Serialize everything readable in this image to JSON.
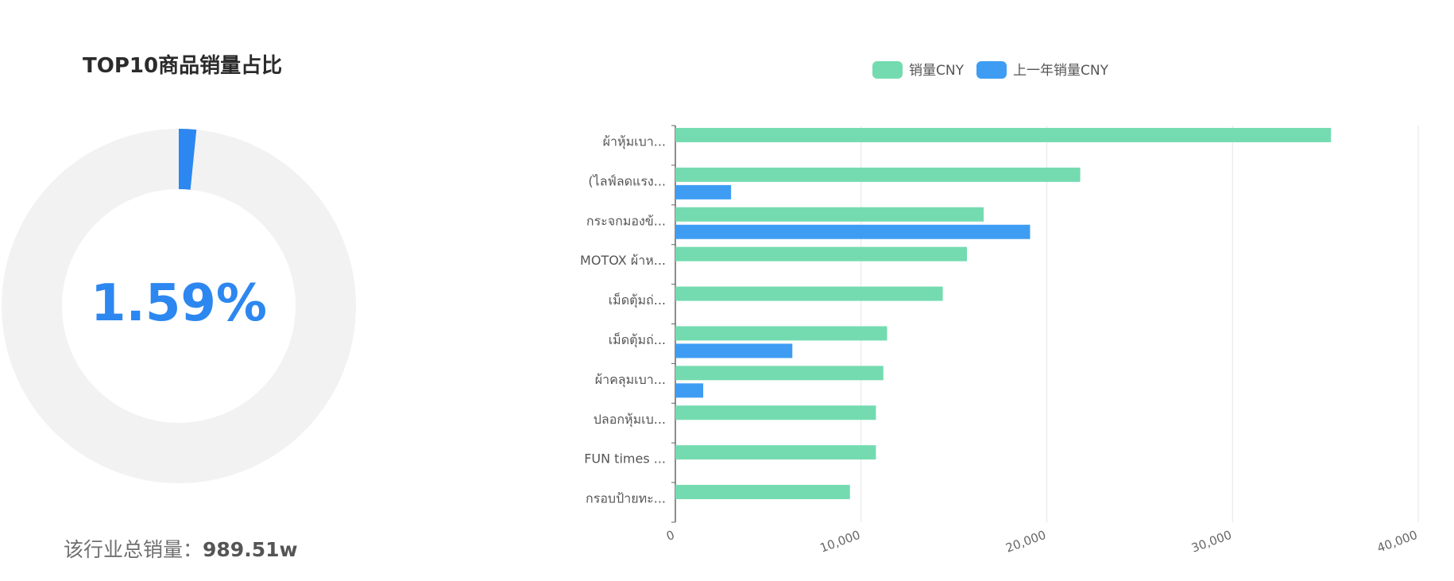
{
  "share_panel": {
    "title": "TOP10商品销量占比",
    "share_percent_label": "1.59%",
    "share_fraction": 0.0159,
    "total_label": "该行业总销量：",
    "total_value": "989.51w",
    "track_color": "#f2f2f2",
    "arc_color": "#2d87f0"
  },
  "chart_data": {
    "type": "bar",
    "orientation": "horizontal",
    "title": "",
    "xlabel": "",
    "ylabel": "",
    "categories": [
      "ผ้าหุ้มเบา...",
      "(ไลฟ์ลดแรง...",
      "กระจกมองข้...",
      "MOTOX ผ้าห...",
      "เม็ดตุ้มถ่...",
      "เม็ดตุ้มถ่...",
      "ผ้าคลุมเบา...",
      "ปลอกหุ้มเบ...",
      "FUN times ...",
      "กรอบป้ายทะ..."
    ],
    "series": [
      {
        "name": "销量CNY",
        "color": "#74dbb0",
        "values": [
          35300,
          21800,
          16600,
          15700,
          14400,
          11400,
          11200,
          10800,
          10800,
          9400
        ]
      },
      {
        "name": "上一年销量CNY",
        "color": "#3e9df3",
        "values": [
          0,
          3000,
          19100,
          0,
          0,
          6300,
          1500,
          0,
          0,
          0
        ]
      }
    ],
    "xlim": [
      0,
      40000
    ],
    "x_ticks": [
      "0",
      "10,000",
      "20,000",
      "30,000",
      "40,000"
    ],
    "grid": true,
    "legend_position": "top-center"
  }
}
